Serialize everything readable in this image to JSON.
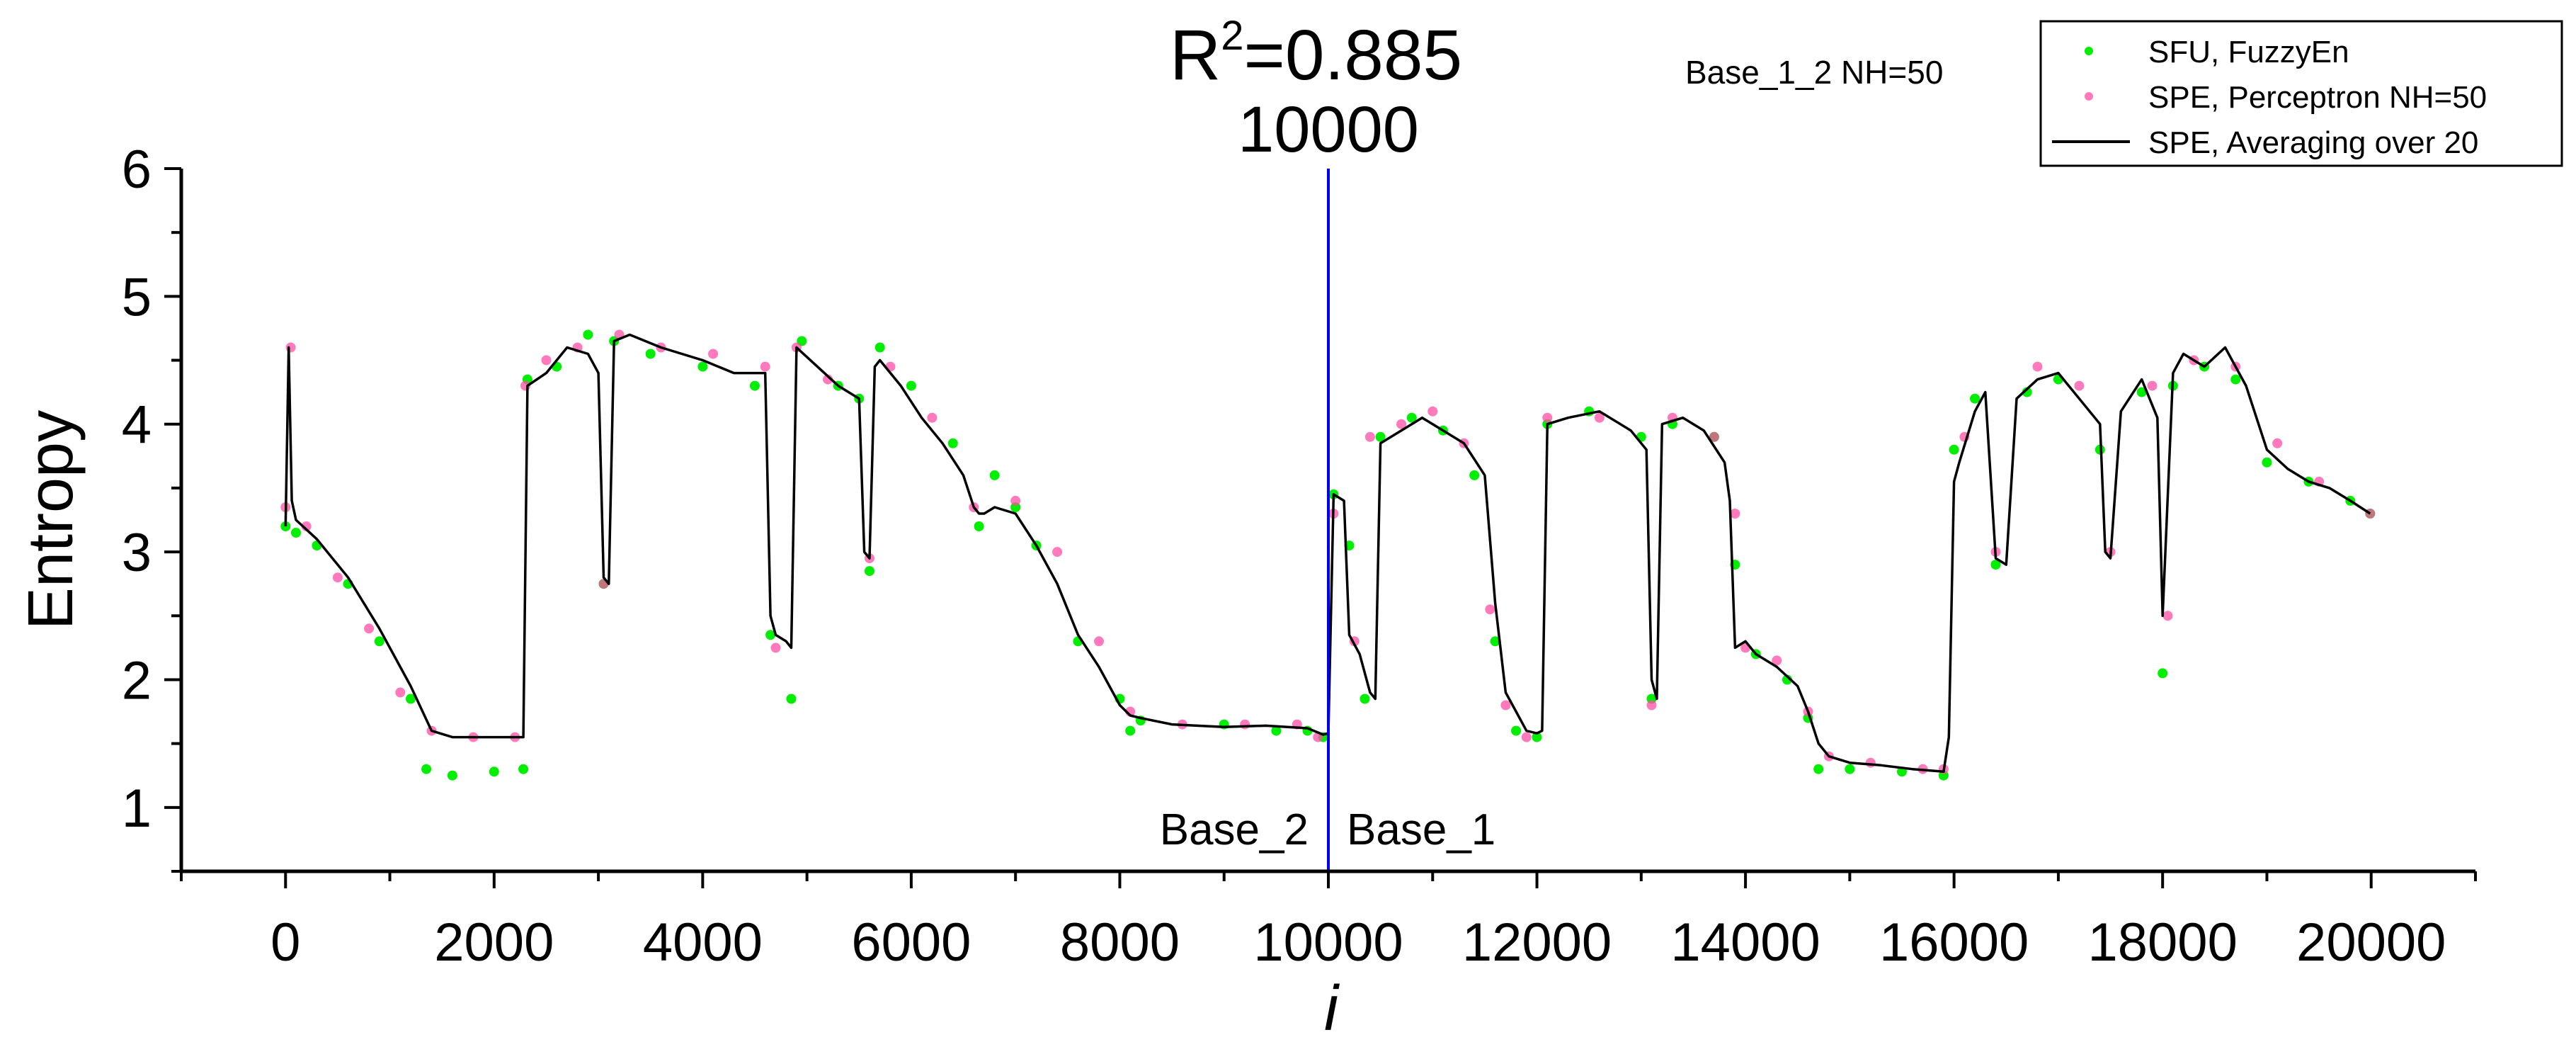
{
  "chart_data": {
    "type": "scatter",
    "title": "",
    "xlabel": "i",
    "ylabel": "Entropy",
    "xlim": [
      -1000,
      21000
    ],
    "ylim": [
      0.5,
      6
    ],
    "xticks": [
      0,
      2000,
      4000,
      6000,
      8000,
      10000,
      12000,
      14000,
      16000,
      18000,
      20000
    ],
    "xtick_labels": [
      "0",
      "2000",
      "4000",
      "6000",
      "8000",
      "10000",
      "12000",
      "14000",
      "16000",
      "18000",
      "20000"
    ],
    "yticks": [
      1,
      2,
      3,
      4,
      5,
      6
    ],
    "ytick_labels": [
      "1",
      "2",
      "3",
      "4",
      "5",
      "6"
    ],
    "grid": false,
    "legend_position": "top-right",
    "series": [
      {
        "name": "SFU, FuzzyEn",
        "kind": "scatter",
        "color": "#00ee00",
        "x": [
          0,
          100,
          300,
          600,
          900,
          1200,
          1350,
          1600,
          2000,
          2280,
          2320,
          2600,
          2900,
          3050,
          3150,
          3500,
          4000,
          4500,
          4650,
          4850,
          4950,
          5300,
          5500,
          5600,
          5700,
          6000,
          6400,
          6650,
          6800,
          7000,
          7200,
          7600,
          8000,
          8100,
          8200,
          9000,
          9500,
          9800,
          9950,
          10050,
          10200,
          10350,
          10500,
          10800,
          11100,
          11400,
          11600,
          11800,
          12000,
          12100,
          12500,
          13000,
          13100,
          13300,
          13700,
          13900,
          14100,
          14400,
          14600,
          14700,
          15000,
          15500,
          15900,
          16000,
          16200,
          16400,
          16700,
          17000,
          17400,
          17800,
          18000,
          18100,
          18400,
          18700,
          19000,
          19400,
          19800,
          19990
        ],
        "y": [
          3.2,
          3.15,
          3.05,
          2.75,
          2.3,
          1.85,
          1.3,
          1.25,
          1.28,
          1.3,
          4.35,
          4.45,
          4.7,
          2.75,
          4.65,
          4.55,
          4.45,
          4.3,
          2.35,
          1.85,
          4.65,
          4.3,
          4.2,
          2.85,
          4.6,
          4.3,
          3.85,
          3.2,
          3.6,
          3.35,
          3.05,
          2.3,
          1.85,
          1.6,
          1.68,
          1.65,
          1.6,
          1.6,
          1.55,
          3.45,
          3.05,
          1.85,
          3.9,
          4.05,
          3.95,
          3.6,
          2.3,
          1.6,
          1.55,
          4.0,
          4.1,
          3.9,
          1.85,
          4.0,
          3.9,
          2.9,
          2.2,
          2.0,
          1.7,
          1.3,
          1.3,
          1.28,
          1.25,
          3.8,
          4.2,
          2.9,
          4.25,
          4.35,
          3.8,
          4.25,
          2.05,
          4.3,
          4.45,
          4.35,
          3.7,
          3.55,
          3.4,
          3.3
        ]
      },
      {
        "name": "SPE, Perceptron NH=50",
        "kind": "scatter",
        "color": "#ff4da6",
        "x": [
          0,
          50,
          200,
          500,
          800,
          1100,
          1400,
          1800,
          2200,
          2300,
          2500,
          2800,
          3050,
          3200,
          3600,
          4100,
          4600,
          4700,
          4900,
          5200,
          5600,
          5800,
          6200,
          6600,
          7000,
          7400,
          7800,
          8100,
          8600,
          9200,
          9700,
          9900,
          10050,
          10250,
          10400,
          10700,
          11000,
          11300,
          11550,
          11700,
          11900,
          12100,
          12600,
          13100,
          13300,
          13700,
          13900,
          14000,
          14300,
          14600,
          14800,
          15200,
          15700,
          15900,
          16100,
          16400,
          16800,
          17200,
          17500,
          17900,
          18050,
          18300,
          18700,
          19100,
          19500,
          19990
        ],
        "y": [
          3.35,
          4.6,
          3.2,
          2.8,
          2.4,
          1.9,
          1.6,
          1.55,
          1.55,
          4.3,
          4.5,
          4.6,
          2.75,
          4.7,
          4.6,
          4.55,
          4.45,
          2.25,
          4.6,
          4.35,
          2.95,
          4.45,
          4.05,
          3.35,
          3.4,
          3.0,
          2.3,
          1.75,
          1.65,
          1.65,
          1.65,
          1.55,
          3.3,
          2.3,
          3.9,
          4.0,
          4.1,
          3.85,
          2.55,
          1.8,
          1.55,
          4.05,
          4.05,
          1.8,
          4.05,
          3.9,
          3.3,
          2.25,
          2.15,
          1.75,
          1.4,
          1.35,
          1.3,
          1.3,
          3.9,
          3.0,
          4.45,
          4.3,
          3.0,
          4.3,
          2.5,
          4.5,
          4.45,
          3.85,
          3.55,
          3.3
        ]
      },
      {
        "name": "SPE, Averaging over 20",
        "kind": "line",
        "color": "#000000",
        "x": [
          0,
          30,
          60,
          100,
          300,
          600,
          900,
          1200,
          1400,
          1600,
          2000,
          2280,
          2320,
          2500,
          2700,
          2900,
          3000,
          3050,
          3100,
          3150,
          3300,
          3600,
          4000,
          4300,
          4600,
          4650,
          4700,
          4800,
          4850,
          4900,
          5100,
          5300,
          5500,
          5550,
          5600,
          5650,
          5700,
          5900,
          6100,
          6300,
          6500,
          6600,
          6650,
          6700,
          6800,
          7000,
          7200,
          7400,
          7600,
          7800,
          8000,
          8100,
          8200,
          8500,
          9000,
          9400,
          9800,
          9950,
          10000,
          10050,
          10150,
          10200,
          10300,
          10400,
          10450,
          10500,
          10700,
          10900,
          11100,
          11300,
          11500,
          11600,
          11700,
          11800,
          11900,
          12000,
          12050,
          12100,
          12300,
          12600,
          12900,
          13050,
          13100,
          13150,
          13200,
          13400,
          13600,
          13800,
          13850,
          13900,
          14000,
          14100,
          14300,
          14500,
          14600,
          14700,
          14800,
          15000,
          15300,
          15600,
          15900,
          15950,
          16000,
          16050,
          16200,
          16300,
          16400,
          16500,
          16600,
          16800,
          17000,
          17200,
          17400,
          17450,
          17500,
          17600,
          17800,
          17950,
          18000,
          18100,
          18200,
          18400,
          18600,
          18800,
          19000,
          19200,
          19400,
          19600,
          19800,
          19990
        ],
        "y": [
          3.2,
          4.6,
          3.4,
          3.25,
          3.1,
          2.8,
          2.4,
          1.95,
          1.6,
          1.55,
          1.55,
          1.55,
          4.3,
          4.4,
          4.6,
          4.55,
          4.4,
          2.8,
          2.75,
          4.65,
          4.7,
          4.6,
          4.5,
          4.4,
          4.4,
          2.5,
          2.35,
          2.3,
          2.25,
          4.6,
          4.45,
          4.3,
          4.2,
          3.0,
          2.95,
          4.45,
          4.5,
          4.3,
          4.05,
          3.85,
          3.6,
          3.35,
          3.3,
          3.3,
          3.35,
          3.3,
          3.05,
          2.75,
          2.35,
          2.1,
          1.8,
          1.72,
          1.7,
          1.65,
          1.63,
          1.64,
          1.62,
          1.57,
          1.58,
          3.45,
          3.4,
          2.35,
          2.2,
          1.9,
          1.85,
          3.85,
          3.95,
          4.05,
          3.95,
          3.85,
          3.6,
          2.6,
          1.9,
          1.75,
          1.6,
          1.58,
          1.6,
          4.0,
          4.05,
          4.1,
          3.95,
          3.8,
          2.0,
          1.85,
          4.0,
          4.05,
          3.95,
          3.7,
          3.4,
          2.25,
          2.3,
          2.2,
          2.1,
          1.95,
          1.75,
          1.5,
          1.4,
          1.35,
          1.33,
          1.3,
          1.28,
          1.55,
          3.55,
          3.7,
          4.1,
          4.25,
          2.95,
          2.9,
          4.2,
          4.35,
          4.4,
          4.2,
          4.0,
          3.0,
          2.95,
          4.1,
          4.35,
          4.05,
          2.5,
          4.4,
          4.55,
          4.45,
          4.6,
          4.3,
          3.8,
          3.65,
          3.55,
          3.5,
          3.4,
          3.3
        ]
      }
    ],
    "annotations": {
      "r2_label": "R",
      "r2_sup": "2",
      "r2_value": "=0.885",
      "split_label": "10000",
      "split_x": 10000,
      "split_color": "#0000ee",
      "left_base": "Base_2",
      "right_base": "Base_1",
      "info": "Base_1_2 NH=50"
    }
  }
}
